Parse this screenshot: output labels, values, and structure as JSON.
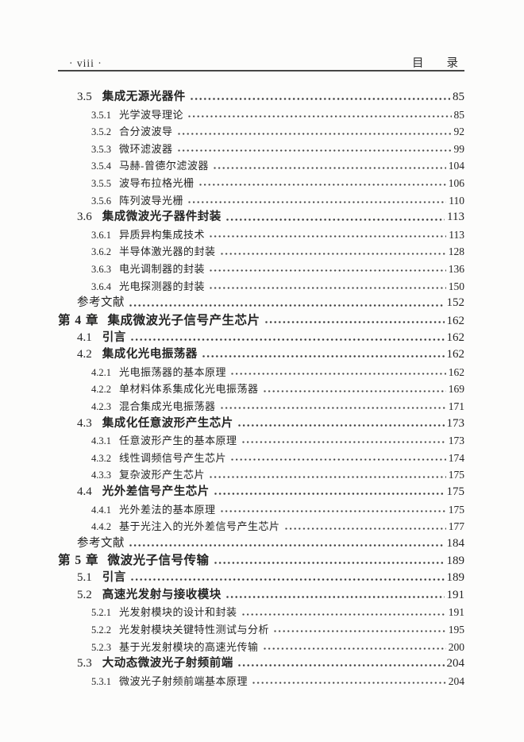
{
  "header": {
    "left": "· viii ·",
    "right": "目　　录"
  },
  "toc": {
    "entries": [
      {
        "level": "section",
        "number": "3.5",
        "title": "集成无源光器件",
        "page": "85"
      },
      {
        "level": "subsection",
        "number": "3.5.1",
        "title": "光学波导理论",
        "page": "85"
      },
      {
        "level": "subsection",
        "number": "3.5.2",
        "title": "合分波波导",
        "page": "92"
      },
      {
        "level": "subsection",
        "number": "3.5.3",
        "title": "微环滤波器",
        "page": "99"
      },
      {
        "level": "subsection",
        "number": "3.5.4",
        "title": "马赫-曾德尔滤波器",
        "page": "104"
      },
      {
        "level": "subsection",
        "number": "3.5.5",
        "title": "波导布拉格光栅",
        "page": "106"
      },
      {
        "level": "subsection",
        "number": "3.5.6",
        "title": "阵列波导光栅",
        "page": "110"
      },
      {
        "level": "section",
        "number": "3.6",
        "title": "集成微波光子器件封装",
        "page": "113"
      },
      {
        "level": "subsection",
        "number": "3.6.1",
        "title": "异质异构集成技术",
        "page": "113"
      },
      {
        "level": "subsection",
        "number": "3.6.2",
        "title": "半导体激光器的封装",
        "page": "128"
      },
      {
        "level": "subsection",
        "number": "3.6.3",
        "title": "电光调制器的封装",
        "page": "136"
      },
      {
        "level": "subsection",
        "number": "3.6.4",
        "title": "光电探测器的封装",
        "page": "150"
      },
      {
        "level": "refs",
        "number": "",
        "title": "参考文献",
        "page": "152"
      },
      {
        "level": "chapter",
        "number": "第 4 章",
        "title": "集成微波光子信号产生芯片",
        "page": "162"
      },
      {
        "level": "section",
        "number": "4.1",
        "title": "引言",
        "page": "162"
      },
      {
        "level": "section",
        "number": "4.2",
        "title": "集成化光电振荡器",
        "page": "162"
      },
      {
        "level": "subsection",
        "number": "4.2.1",
        "title": "光电振荡器的基本原理",
        "page": "162"
      },
      {
        "level": "subsection",
        "number": "4.2.2",
        "title": "单材料体系集成化光电振荡器",
        "page": "169"
      },
      {
        "level": "subsection",
        "number": "4.2.3",
        "title": "混合集成光电振荡器",
        "page": "171"
      },
      {
        "level": "section",
        "number": "4.3",
        "title": "集成化任意波形产生芯片",
        "page": "173"
      },
      {
        "level": "subsection",
        "number": "4.3.1",
        "title": "任意波形产生的基本原理",
        "page": "173"
      },
      {
        "level": "subsection",
        "number": "4.3.2",
        "title": "线性调频信号产生芯片",
        "page": "174"
      },
      {
        "level": "subsection",
        "number": "4.3.3",
        "title": "复杂波形产生芯片",
        "page": "175"
      },
      {
        "level": "section",
        "number": "4.4",
        "title": "光外差信号产生芯片",
        "page": "175"
      },
      {
        "level": "subsection",
        "number": "4.4.1",
        "title": "光外差法的基本原理",
        "page": "175"
      },
      {
        "level": "subsection",
        "number": "4.4.2",
        "title": "基于光注入的光外差信号产生芯片",
        "page": "177"
      },
      {
        "level": "refs",
        "number": "",
        "title": "参考文献",
        "page": "184"
      },
      {
        "level": "chapter",
        "number": "第 5 章",
        "title": "微波光子信号传输",
        "page": "189"
      },
      {
        "level": "section",
        "number": "5.1",
        "title": "引言",
        "page": "189"
      },
      {
        "level": "section",
        "number": "5.2",
        "title": "高速光发射与接收模块",
        "page": "191"
      },
      {
        "level": "subsection",
        "number": "5.2.1",
        "title": "光发射模块的设计和封装",
        "page": "191"
      },
      {
        "level": "subsection",
        "number": "5.2.2",
        "title": "光发射模块关键特性测试与分析",
        "page": "195"
      },
      {
        "level": "subsection",
        "number": "5.2.3",
        "title": "基于光发射模块的高速光传输",
        "page": "200"
      },
      {
        "level": "section",
        "number": "5.3",
        "title": "大动态微波光子射频前端",
        "page": "204"
      },
      {
        "level": "subsection",
        "number": "5.3.1",
        "title": "微波光子射频前端基本原理",
        "page": "204"
      }
    ]
  }
}
